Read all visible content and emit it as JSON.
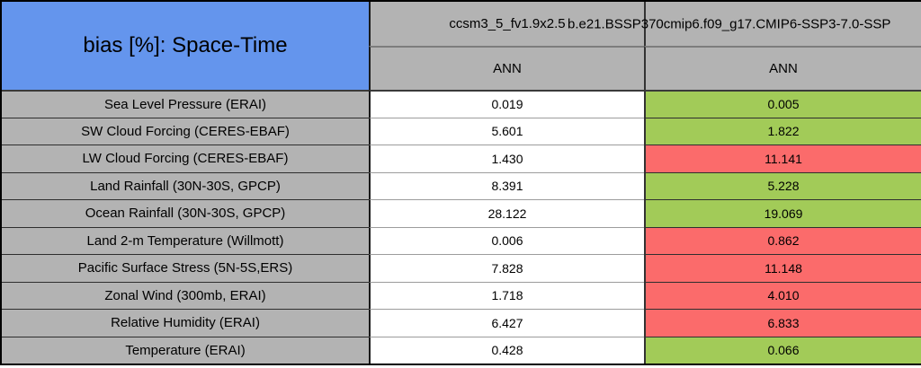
{
  "title": "bias [%]: Space-Time",
  "columns": [
    {
      "model": "ccsm3_5_fv1.9x2.5",
      "season": "ANN"
    },
    {
      "model": "b.e21.BSSP370cmip6.f09_g17.CMIP6-SSP3-7.0-SSP",
      "season": "ANN"
    }
  ],
  "rows": [
    {
      "label": "Sea Level Pressure (ERAI)",
      "values": [
        "0.019",
        "0.005"
      ],
      "highlight": "better"
    },
    {
      "label": "SW Cloud Forcing (CERES-EBAF)",
      "values": [
        "5.601",
        "1.822"
      ],
      "highlight": "better"
    },
    {
      "label": "LW Cloud Forcing (CERES-EBAF)",
      "values": [
        "1.430",
        "11.141"
      ],
      "highlight": "worse"
    },
    {
      "label": "Land Rainfall (30N-30S, GPCP)",
      "values": [
        "8.391",
        "5.228"
      ],
      "highlight": "better"
    },
    {
      "label": "Ocean Rainfall (30N-30S, GPCP)",
      "values": [
        "28.122",
        "19.069"
      ],
      "highlight": "better"
    },
    {
      "label": "Land 2-m Temperature (Willmott)",
      "values": [
        "0.006",
        "0.862"
      ],
      "highlight": "worse"
    },
    {
      "label": "Pacific Surface Stress (5N-5S,ERS)",
      "values": [
        "7.828",
        "11.148"
      ],
      "highlight": "worse"
    },
    {
      "label": "Zonal Wind (300mb, ERAI)",
      "values": [
        "1.718",
        "4.010"
      ],
      "highlight": "worse"
    },
    {
      "label": "Relative Humidity (ERAI)",
      "values": [
        "6.427",
        "6.833"
      ],
      "highlight": "worse"
    },
    {
      "label": "Temperature (ERAI)",
      "values": [
        "0.428",
        "0.066"
      ],
      "highlight": "better"
    }
  ],
  "colors": {
    "title_bg": "#6495ED",
    "header_bg": "#B3B3B3",
    "label_bg": "#B3B3B3",
    "better": "#A2CB58",
    "worse": "#FB6B6B"
  }
}
